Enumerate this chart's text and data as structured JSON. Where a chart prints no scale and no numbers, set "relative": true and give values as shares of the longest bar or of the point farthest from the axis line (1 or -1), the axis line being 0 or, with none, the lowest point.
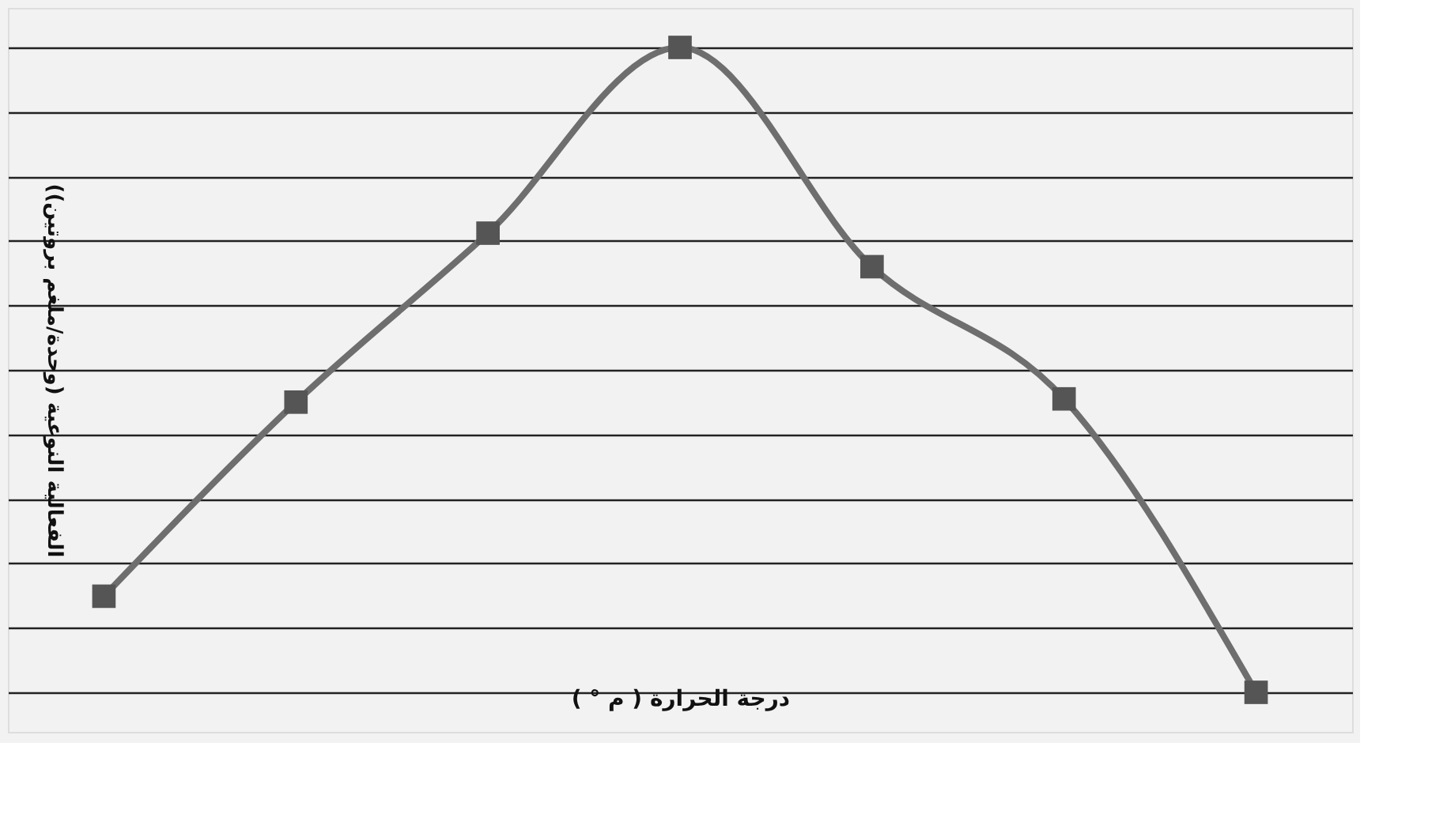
{
  "chart_data": {
    "type": "line",
    "xlabel": "درجة الحرارة ( م ° )",
    "ylabel": "(الفعالية النوعية (وحدة/ملغم بروتين)",
    "relative": true,
    "categories": [
      null,
      null,
      null,
      null,
      null,
      null,
      null
    ],
    "series": [
      {
        "color": "#6e6e6e",
        "values": [
          0.149,
          0.45,
          0.712,
          1,
          0.66,
          0.455,
          0
        ]
      }
    ],
    "marker": "square",
    "line_style": "solid",
    "grid": "y"
  }
}
